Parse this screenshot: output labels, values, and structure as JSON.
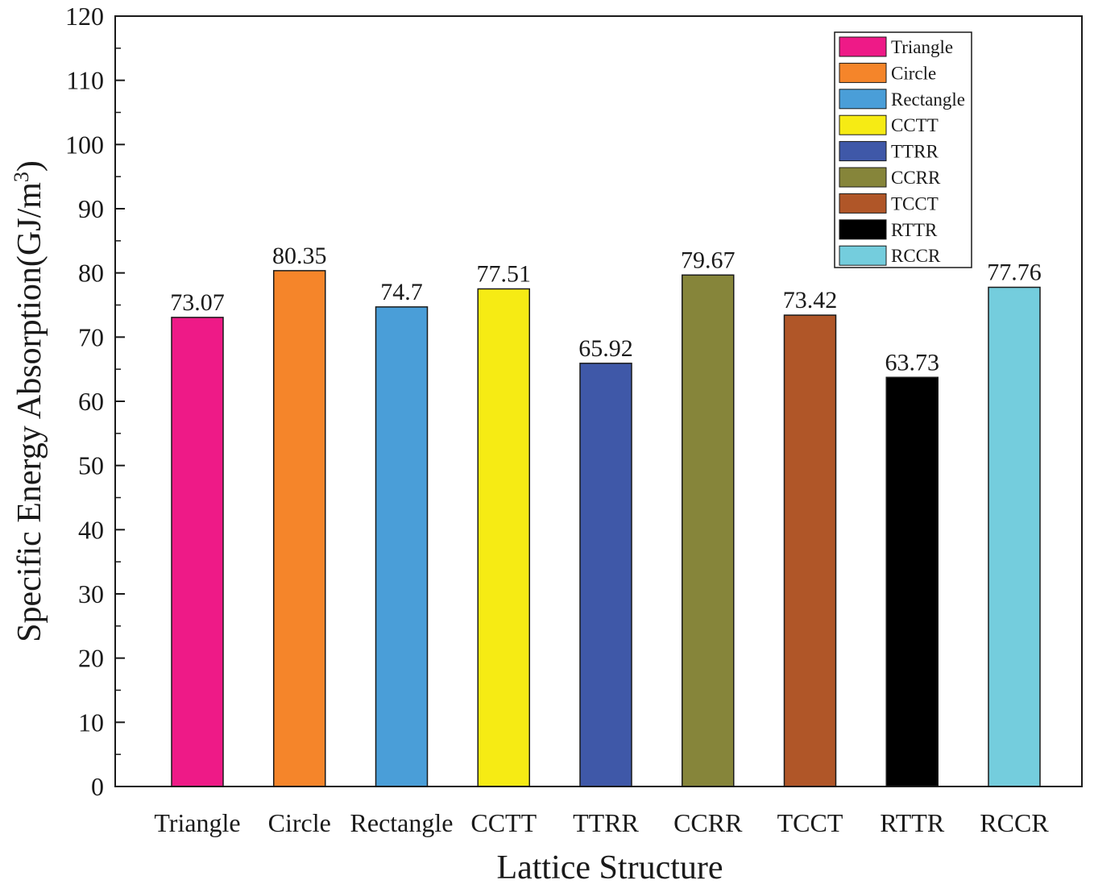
{
  "chart_data": {
    "type": "bar",
    "title": "",
    "xlabel": "Lattice Structure",
    "ylabel": "Specific Energy Absorption(GJ/m",
    "ylabel_superscript": "3",
    "ylabel_close": ")",
    "ylim": [
      0,
      120
    ],
    "major_ticks": [
      0,
      10,
      20,
      30,
      40,
      50,
      60,
      70,
      80,
      90,
      100,
      110,
      120
    ],
    "minor_tick_step": 5,
    "grid": false,
    "legend_position": "top-right",
    "categories": [
      "Triangle",
      "Circle",
      "Rectangle",
      "CCTT",
      "TTRR",
      "CCRR",
      "TCCT",
      "RTTR",
      "RCCR"
    ],
    "values": [
      73.07,
      80.35,
      74.7,
      77.51,
      65.92,
      79.67,
      73.42,
      63.73,
      77.76
    ],
    "value_labels": [
      "73.07",
      "80.35",
      "74.7",
      "77.51",
      "65.92",
      "79.67",
      "73.42",
      "63.73",
      "77.76"
    ],
    "colors": [
      "#ee1a87",
      "#f5852a",
      "#4a9ed8",
      "#f6eb14",
      "#3f58a8",
      "#86853a",
      "#b05628",
      "#000000",
      "#74cddd"
    ],
    "legend": [
      "Triangle",
      "Circle",
      "Rectangle",
      "CCTT",
      "TTRR",
      "CCRR",
      "TCCT",
      "RTTR",
      "RCCR"
    ]
  }
}
